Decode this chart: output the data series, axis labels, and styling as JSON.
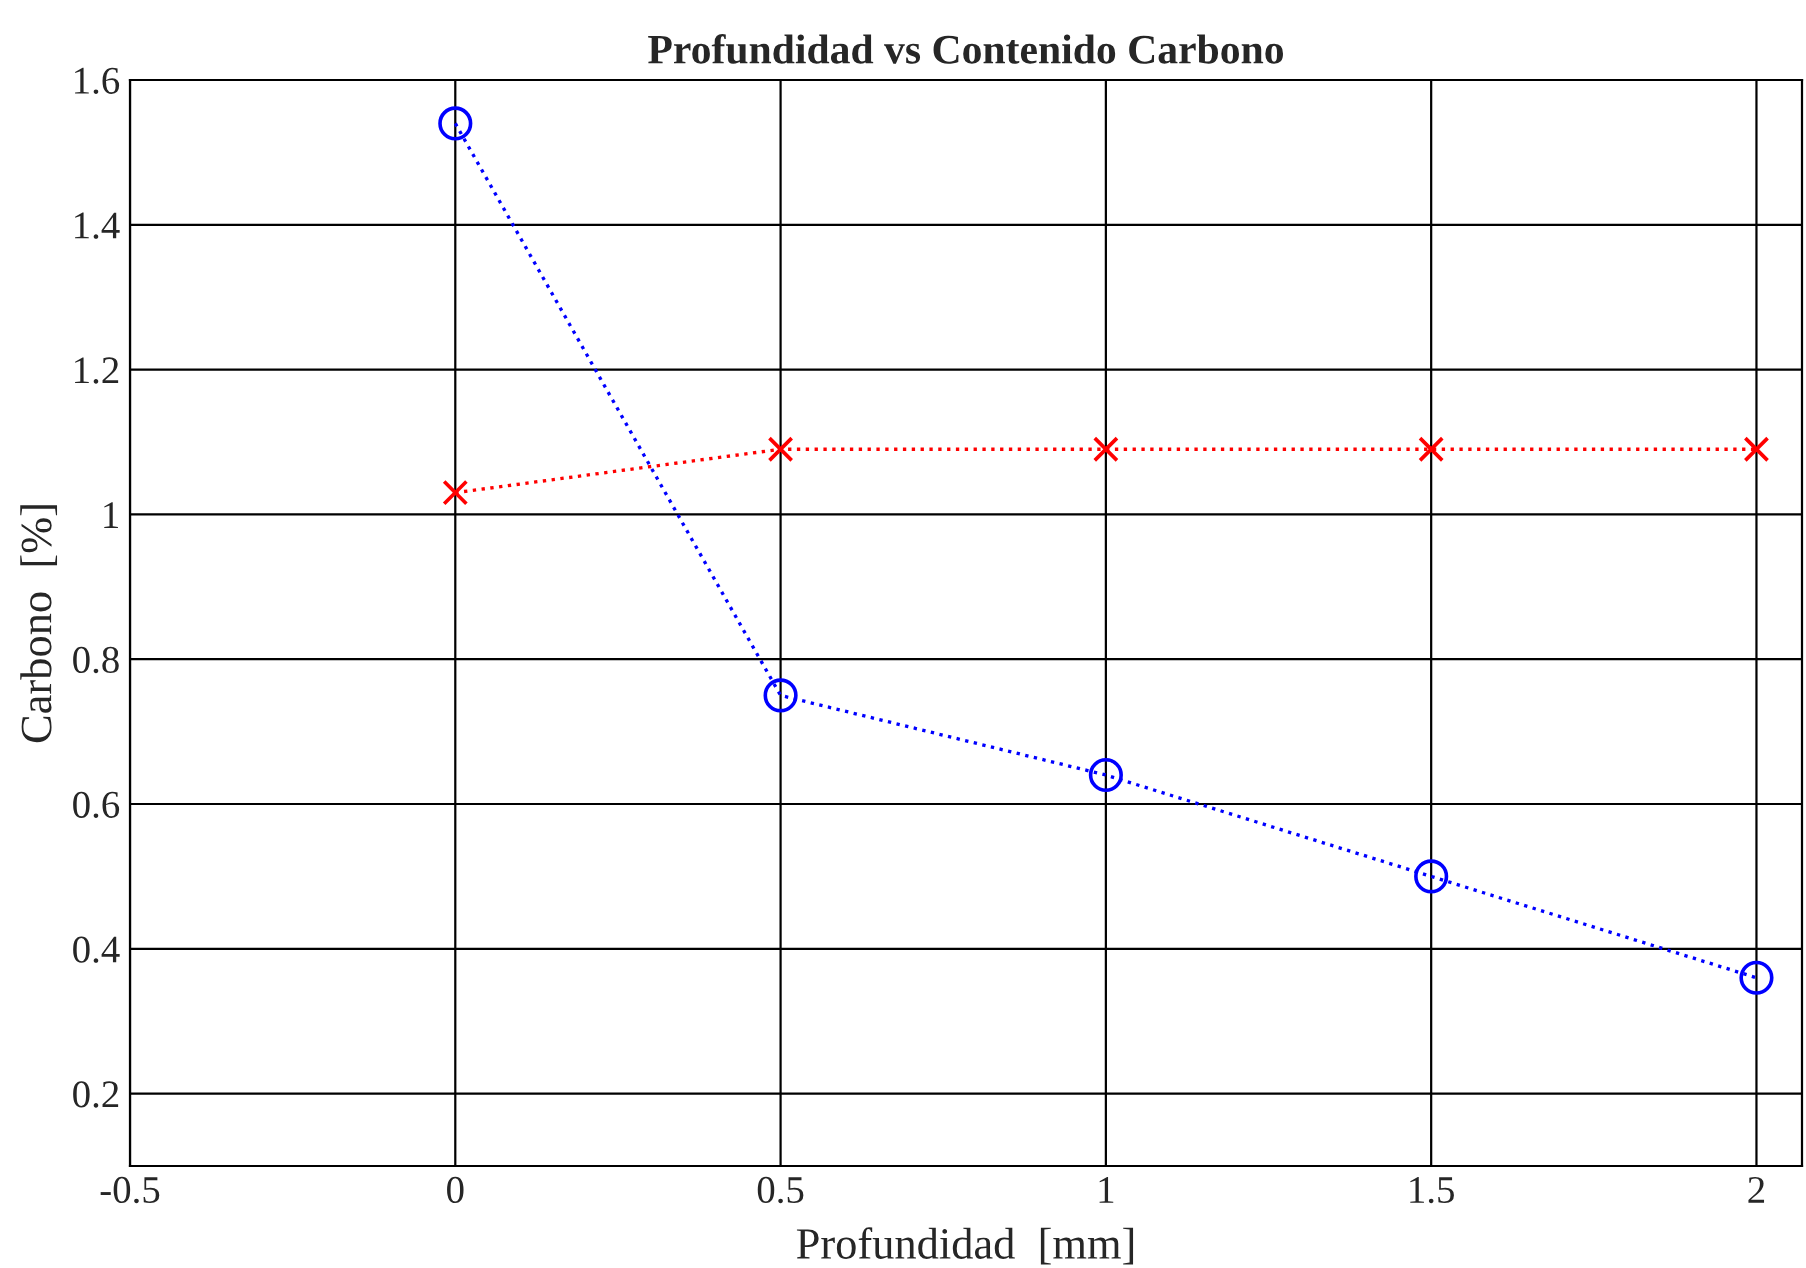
{
  "chart_data": {
    "type": "line",
    "title": "Profundidad vs Contenido Carbono",
    "xlabel": "Profundidad  [mm]",
    "ylabel": "Carbono  [%]",
    "x": [
      0,
      0.5,
      1,
      1.5,
      2
    ],
    "series": [
      {
        "color": "#0000ff",
        "marker": "circle",
        "line_style": "dotted",
        "values": [
          1.54,
          0.75,
          0.64,
          0.5,
          0.36
        ]
      },
      {
        "color": "#ff0000",
        "marker": "cross",
        "line_style": "dotted",
        "values": [
          1.03,
          1.09,
          1.09,
          1.09,
          1.09
        ]
      }
    ],
    "xlim": [
      -0.5,
      2.07
    ],
    "xticks": [
      -0.5,
      0,
      0.5,
      1,
      1.5,
      2
    ],
    "ylim": [
      0.1,
      1.6
    ],
    "yticks": [
      0.2,
      0.4,
      0.6,
      0.8,
      1,
      1.2,
      1.4,
      1.6
    ],
    "grid": true
  }
}
